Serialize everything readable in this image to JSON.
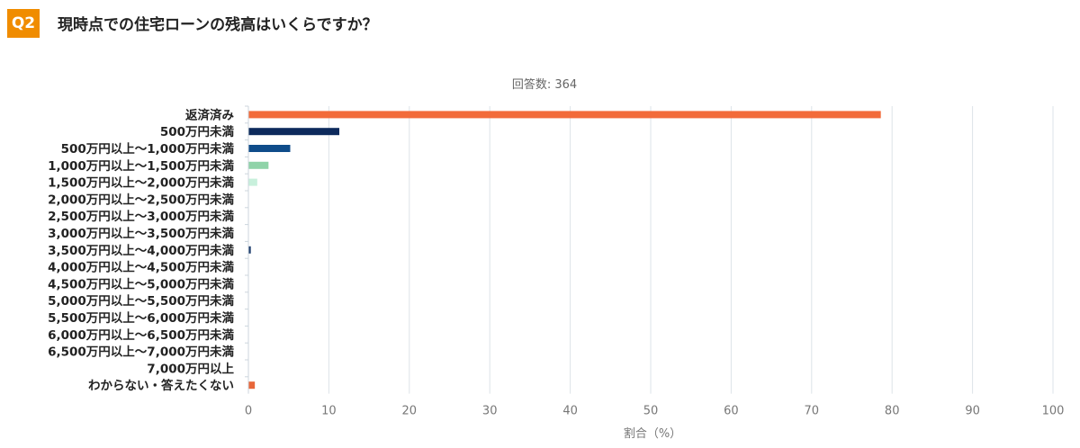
{
  "question": {
    "badge": "Q2",
    "text": "現時点での住宅ローンの残高はいくらですか？"
  },
  "chart_data": {
    "type": "bar",
    "orientation": "horizontal",
    "subtitle": "回答数: 364",
    "xlabel": "割合（%）",
    "xlim": [
      0,
      100
    ],
    "xticks": [
      0,
      10,
      20,
      30,
      40,
      50,
      60,
      70,
      80,
      90,
      100
    ],
    "grid": true,
    "categories": [
      "返済済み",
      "500万円未満",
      "500万円以上～1,000万円未満",
      "1,000万円以上～1,500万円未満",
      "1,500万円以上～2,000万円未満",
      "2,000万円以上～2,500万円未満",
      "2,500万円以上～3,000万円未満",
      "3,000万円以上～3,500万円未満",
      "3,500万円以上～4,000万円未満",
      "4,000万円以上～4,500万円未満",
      "4,500万円以上～5,000万円未満",
      "5,000万円以上～5,500万円未満",
      "5,500万円以上～6,000万円未満",
      "6,000万円以上～6,500万円未満",
      "6,500万円以上～7,000万円未満",
      "7,000万円以上",
      "わからない・答えたくない"
    ],
    "values": [
      78.6,
      11.3,
      5.2,
      2.5,
      1.1,
      0,
      0,
      0,
      0.3,
      0,
      0,
      0,
      0,
      0,
      0,
      0,
      0.8
    ],
    "colors": [
      "#f26b3a",
      "#0d2a5c",
      "#0f4c8a",
      "#8fd3a8",
      "#c8f0dc",
      "#cfe0ee",
      "#cfe0ee",
      "#cfe0ee",
      "#1f3f6e",
      "#cfe0ee",
      "#cfe0ee",
      "#cfe0ee",
      "#cfe0ee",
      "#cfe0ee",
      "#cfe0ee",
      "#cfe0ee",
      "#e8673a"
    ]
  }
}
